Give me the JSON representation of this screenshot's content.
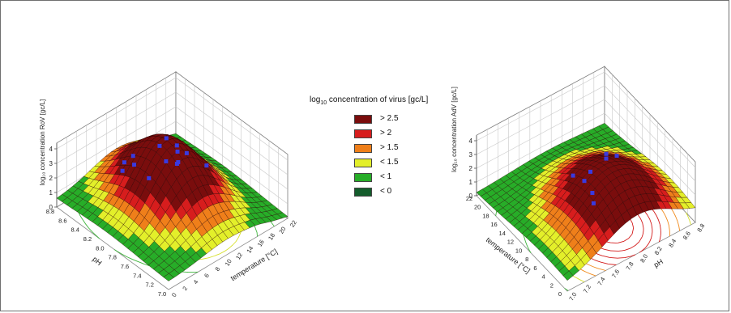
{
  "legend": {
    "title_prefix": "log",
    "title_sub": "10",
    "title_rest": " concentration of virus [gc/L]",
    "items": [
      {
        "label": "> 2.5",
        "color": "#7a0d0d"
      },
      {
        "label": "> 2",
        "color": "#d71d1d"
      },
      {
        "label": "> 1.5",
        "color": "#ef7f1a"
      },
      {
        "label": "< 1.5",
        "color": "#e3ef2a"
      },
      {
        "label": "< 1",
        "color": "#27ad28"
      },
      {
        "label": "< 0",
        "color": "#145c2c"
      }
    ]
  },
  "chart_data": [
    {
      "type": "surface",
      "zlabel": "log₁₀ concentration RoV [gc/L]",
      "xlabel": "temperature [°C]",
      "ylabel": "pH",
      "z_ticks": [
        "0",
        "1",
        "2",
        "3",
        "4"
      ],
      "temperature_ticks": [
        "0",
        "2",
        "4",
        "6",
        "8",
        "10",
        "12",
        "14",
        "16",
        "18",
        "20",
        "22"
      ],
      "ph_ticks": [
        "7.0",
        "7.2",
        "7.4",
        "7.6",
        "7.8",
        "8.0",
        "8.2",
        "8.4",
        "8.6",
        "8.8"
      ],
      "temperature_range": [
        0,
        22
      ],
      "ph_range": [
        7.0,
        8.8
      ],
      "z_range": [
        0,
        4
      ],
      "peak": {
        "temperature": 11,
        "ph": 7.9,
        "value": 4.2
      },
      "observations": 14
    },
    {
      "type": "surface",
      "zlabel": "log₁₀ concentration AdV [gc/L]",
      "xlabel": "pH",
      "ylabel": "temperature [°C]",
      "z_ticks": [
        "0",
        "1",
        "2",
        "3",
        "4"
      ],
      "temperature_ticks": [
        "0",
        "2",
        "4",
        "6",
        "8",
        "10",
        "12",
        "14",
        "16",
        "18",
        "20",
        "22"
      ],
      "ph_ticks": [
        "7.0",
        "7.2",
        "7.4",
        "7.6",
        "7.8",
        "8.0",
        "8.2",
        "8.4",
        "8.6",
        "8.8"
      ],
      "temperature_range": [
        0,
        22
      ],
      "ph_range": [
        7.0,
        8.8
      ],
      "z_range": [
        0,
        4
      ],
      "peak": {
        "temperature": 6,
        "ph": 8.2,
        "value": 4.3
      },
      "observations": 8
    }
  ]
}
